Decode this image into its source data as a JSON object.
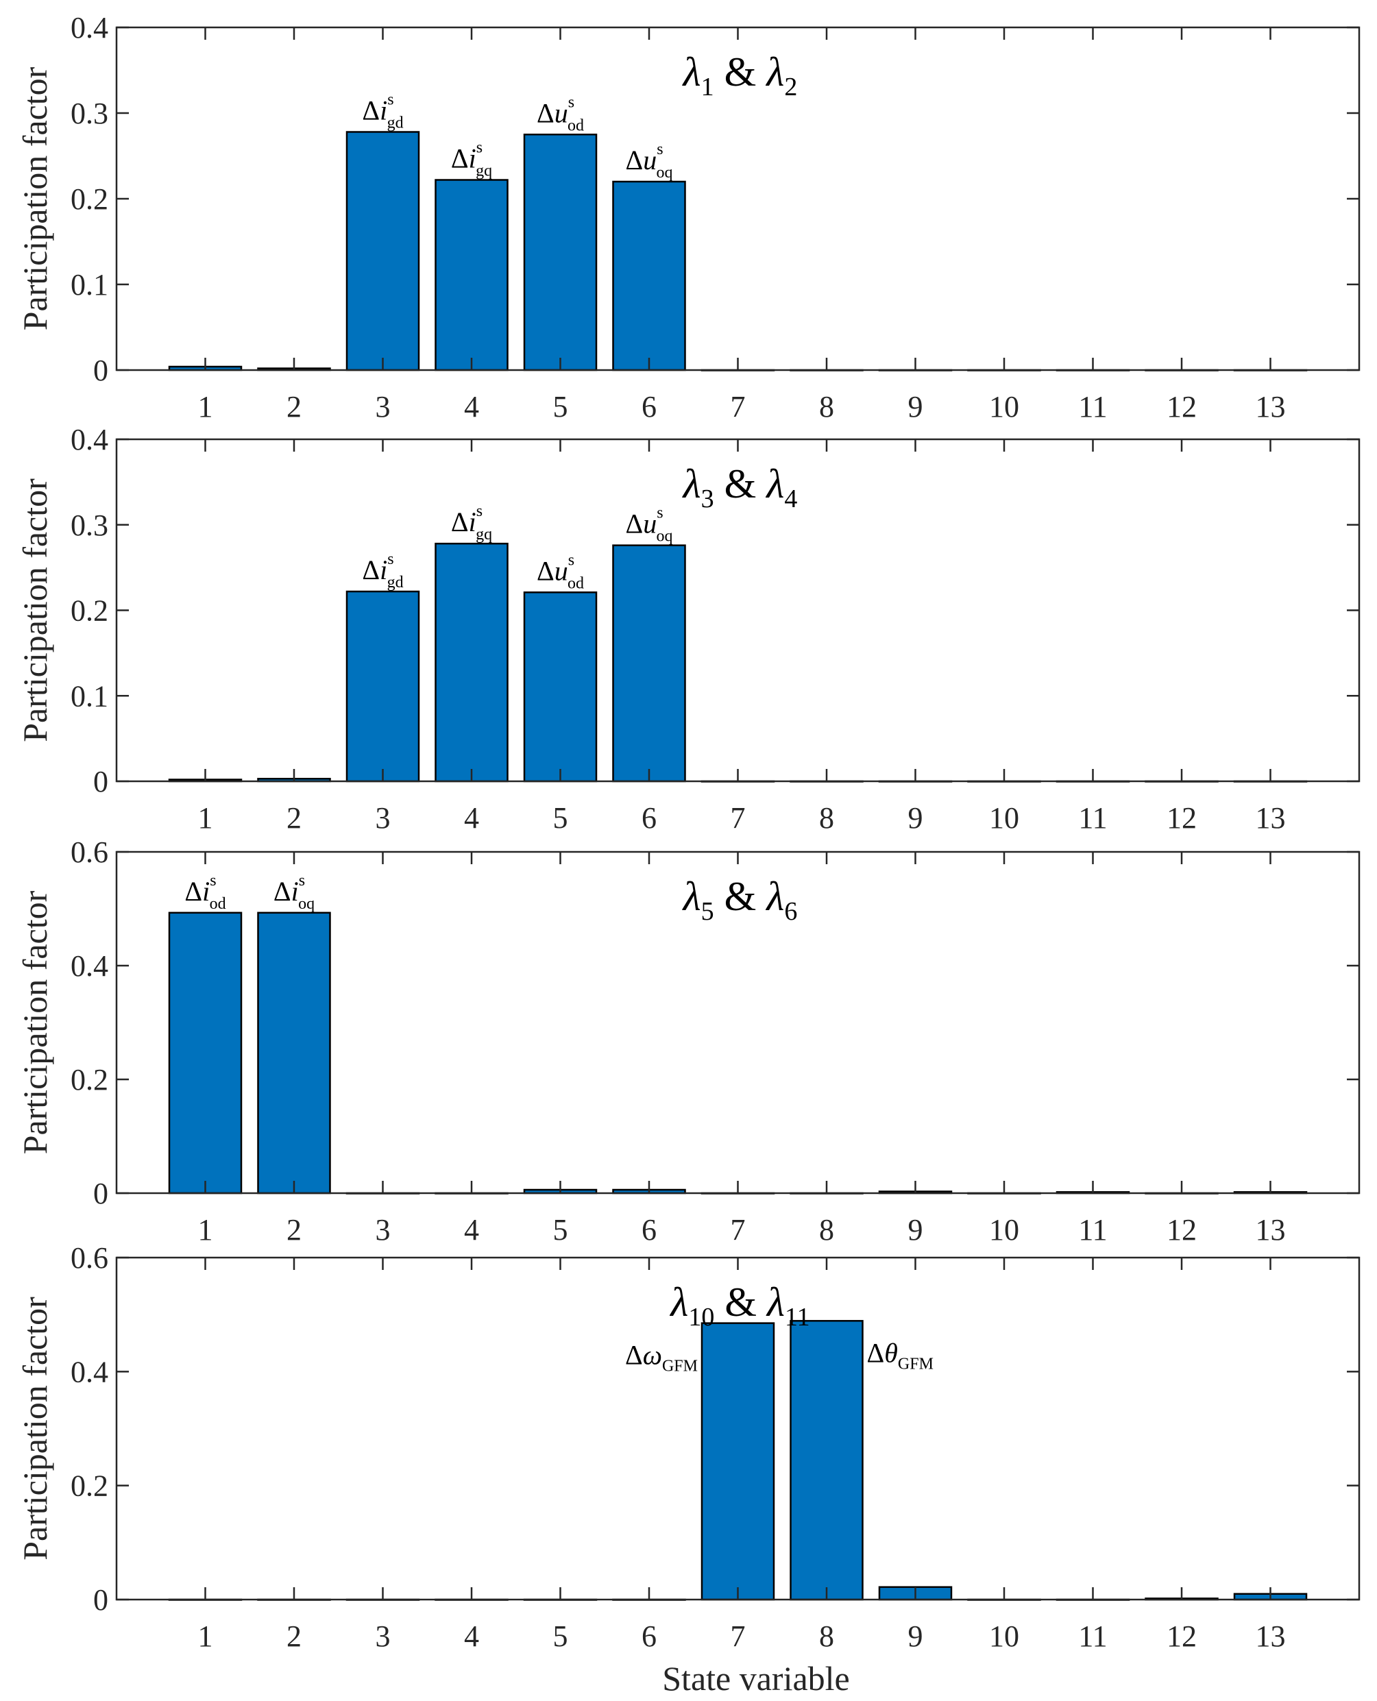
{
  "figure": {
    "ylabel": "Participation factor",
    "xlabel": "State variable"
  },
  "chart_data": [
    {
      "type": "bar",
      "title": {
        "symbol": "λ",
        "sub1": "1",
        "amp": "&",
        "sub2": "2"
      },
      "xlabel": "",
      "ylabel": "Participation factor",
      "categories": [
        "1",
        "2",
        "3",
        "4",
        "5",
        "6",
        "7",
        "8",
        "9",
        "10",
        "11",
        "12",
        "13"
      ],
      "values": [
        0.004,
        0.002,
        0.278,
        0.222,
        0.275,
        0.22,
        0,
        0,
        0,
        0,
        0,
        0,
        0
      ],
      "ylim": [
        0,
        0.4
      ],
      "yticks": [
        "0",
        "0.1",
        "0.2",
        "0.3",
        "0.4"
      ],
      "color": "#0072BD",
      "annotations": [
        {
          "bar": 3,
          "symbol": "Δ",
          "var": "i",
          "sup": "s",
          "sub": "gd"
        },
        {
          "bar": 4,
          "symbol": "Δ",
          "var": "i",
          "sup": "s",
          "sub": "gq"
        },
        {
          "bar": 5,
          "symbol": "Δ",
          "var": "u",
          "sup": "s",
          "sub": "od"
        },
        {
          "bar": 6,
          "symbol": "Δ",
          "var": "u",
          "sup": "s",
          "sub": "oq"
        }
      ]
    },
    {
      "type": "bar",
      "title": {
        "symbol": "λ",
        "sub1": "3",
        "amp": "&",
        "sub2": "4"
      },
      "xlabel": "",
      "ylabel": "Participation factor",
      "categories": [
        "1",
        "2",
        "3",
        "4",
        "5",
        "6",
        "7",
        "8",
        "9",
        "10",
        "11",
        "12",
        "13"
      ],
      "values": [
        0.002,
        0.003,
        0.222,
        0.278,
        0.221,
        0.276,
        0,
        0,
        0,
        0,
        0,
        0,
        0
      ],
      "ylim": [
        0,
        0.4
      ],
      "yticks": [
        "0",
        "0.1",
        "0.2",
        "0.3",
        "0.4"
      ],
      "color": "#0072BD",
      "annotations": [
        {
          "bar": 3,
          "symbol": "Δ",
          "var": "i",
          "sup": "s",
          "sub": "gd"
        },
        {
          "bar": 4,
          "symbol": "Δ",
          "var": "i",
          "sup": "s",
          "sub": "gq"
        },
        {
          "bar": 5,
          "symbol": "Δ",
          "var": "u",
          "sup": "s",
          "sub": "od"
        },
        {
          "bar": 6,
          "symbol": "Δ",
          "var": "u",
          "sup": "s",
          "sub": "oq"
        }
      ]
    },
    {
      "type": "bar",
      "title": {
        "symbol": "λ",
        "sub1": "5",
        "amp": "&",
        "sub2": "6"
      },
      "xlabel": "",
      "ylabel": "Participation factor",
      "categories": [
        "1",
        "2",
        "3",
        "4",
        "5",
        "6",
        "7",
        "8",
        "9",
        "10",
        "11",
        "12",
        "13"
      ],
      "values": [
        0.493,
        0.493,
        0,
        0,
        0.006,
        0.006,
        0,
        0,
        0.003,
        0,
        0.002,
        0,
        0.002
      ],
      "ylim": [
        0,
        0.6
      ],
      "yticks": [
        "0",
        "0.2",
        "0.4",
        "0.6"
      ],
      "color": "#0072BD",
      "annotations": [
        {
          "bar": 1,
          "symbol": "Δ",
          "var": "i",
          "sup": "s",
          "sub": "od"
        },
        {
          "bar": 2,
          "symbol": "Δ",
          "var": "i",
          "sup": "s",
          "sub": "oq"
        }
      ]
    },
    {
      "type": "bar",
      "title": {
        "symbol": "λ",
        "sub1": "10",
        "amp": "&",
        "sub2": "11"
      },
      "xlabel": "State variable",
      "ylabel": "Participation factor",
      "categories": [
        "1",
        "2",
        "3",
        "4",
        "5",
        "6",
        "7",
        "8",
        "9",
        "10",
        "11",
        "12",
        "13"
      ],
      "values": [
        0,
        0,
        0,
        0,
        0,
        0,
        0.485,
        0.489,
        0.022,
        0,
        0,
        0.002,
        0.01
      ],
      "ylim": [
        0,
        0.6
      ],
      "yticks": [
        "0",
        "0.2",
        "0.4",
        "0.6"
      ],
      "color": "#0072BD",
      "annotations": [
        {
          "bar": 7,
          "symbol": "Δ",
          "var": "ω",
          "sup": "",
          "sub": "GFM",
          "side": "left"
        },
        {
          "bar": 8,
          "symbol": "Δ",
          "var": "θ",
          "sup": "",
          "sub": "GFM",
          "side": "right"
        }
      ]
    }
  ]
}
